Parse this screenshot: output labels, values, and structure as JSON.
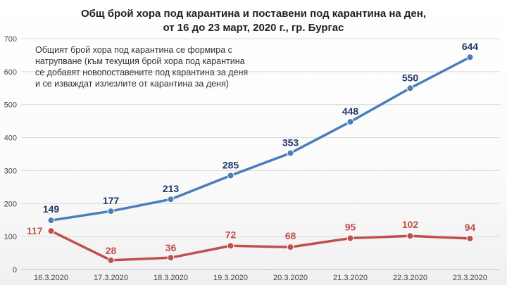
{
  "chart_data": {
    "type": "line",
    "title": "Общ брой хора под карантина  и поставени под карантина  на ден,",
    "subtitle": "от 16 до 23 март, 2020 г., гр. Бургас",
    "annotation": [
      "Общият брой хора под карантина се формира с",
      "натрупване (към текущия брой хора под карантина",
      "се добавят новопоставените под карантина за деня",
      "и се изваждат излезлите от карантина за деня)"
    ],
    "categories": [
      "16.3.2020",
      "17.3.2020",
      "18.3.2020",
      "19.3.2020",
      "20.3.2020",
      "21.3.2020",
      "22.3.2020",
      "23.3.2020"
    ],
    "ylim": [
      0,
      700
    ],
    "yticks": [
      0,
      100,
      200,
      300,
      400,
      500,
      600,
      700
    ],
    "grid": true,
    "legend": "none",
    "series": [
      {
        "values": [
          149,
          177,
          213,
          285,
          353,
          448,
          550,
          644
        ],
        "color": "#4a7ebb",
        "label_color": "#1f3864",
        "label_position": "above"
      },
      {
        "values": [
          117,
          28,
          36,
          72,
          68,
          95,
          102,
          94
        ],
        "color": "#c0504d",
        "label_color": "#c0504d",
        "label_position": "mixed"
      }
    ]
  }
}
